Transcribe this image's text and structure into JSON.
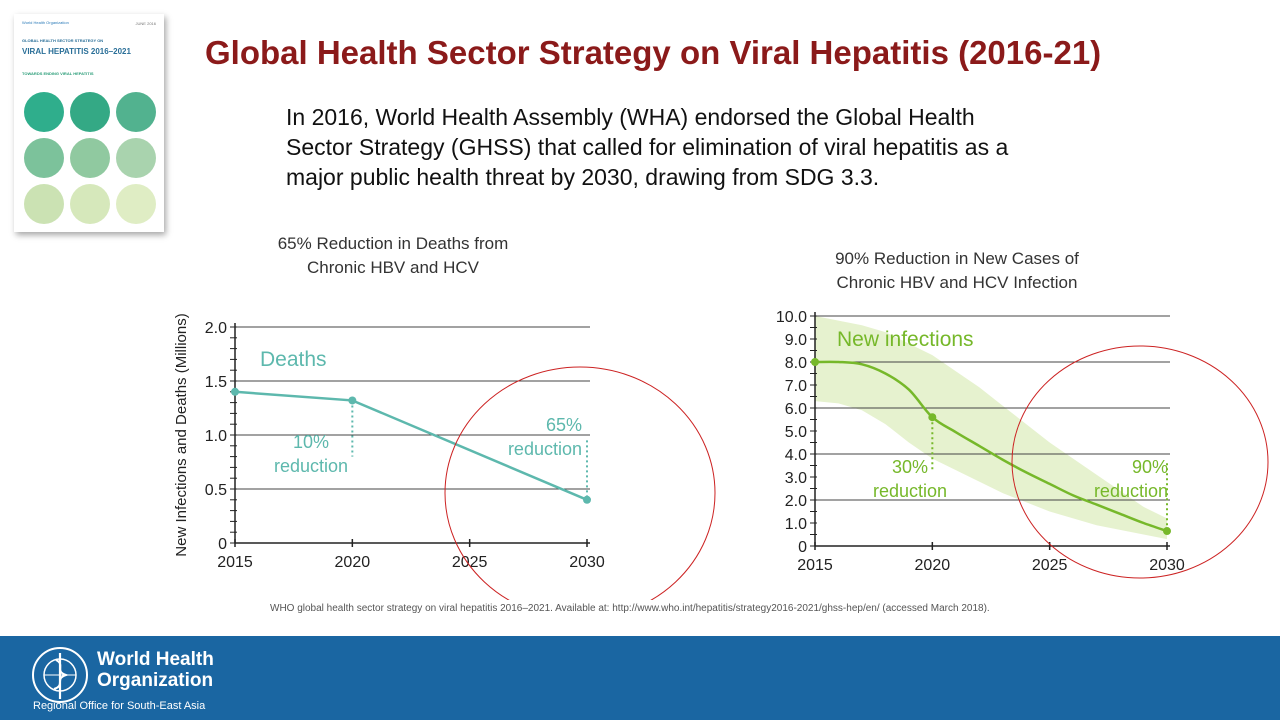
{
  "slide": {
    "title": "Global Health Sector Strategy on Viral Hepatitis (2016-21)",
    "intro_lines": [
      "In 2016, World Health Assembly (WHA) endorsed the Global Health",
      "Sector Strategy (GHSS) that called for elimination of viral hepatitis as a",
      "major public health threat by 2030, drawing from SDG 3.3."
    ],
    "citation": "WHO global health sector strategy on viral hepatitis 2016–2021. Available at: http://www.who.int/hepatitis/strategy2016-2021/ghss-hep/en/ (accessed March 2018)."
  },
  "cover": {
    "logo": "World Health Organization",
    "date": "JUNE 2016",
    "kicker": "GLOBAL HEALTH SECTOR STRATEGY ON",
    "title": "VIRAL HEPATITIS 2016–2021",
    "subtitle": "TOWARDS ENDING VIRAL HEPATITIS",
    "dot_colors": [
      "#2fae8c",
      "#34a985",
      "#52b28f",
      "#7cc29b",
      "#90c9a0",
      "#a9d3ae",
      "#cbe2b3",
      "#d6e8bb",
      "#dfedc4"
    ]
  },
  "footer": {
    "org_name": "World Health Organization",
    "region": "Regional Office for South-East Asia",
    "bg_color": "#1a66a2"
  },
  "chart_data": [
    {
      "type": "line",
      "title": "65% Reduction in Deaths from Chronic HBV and HCV",
      "title_lines": [
        "65% Reduction in Deaths from",
        "Chronic HBV and HCV"
      ],
      "ylabel": "New Infections and Deaths (Millions)",
      "xlabel": "",
      "x_ticks": [
        2015,
        2020,
        2025,
        2030
      ],
      "y_ticks": [
        0,
        0.5,
        1.0,
        1.5,
        2.0
      ],
      "y_tick_labels": [
        "0",
        "0.5",
        "1.0",
        "1.5",
        "2.0"
      ],
      "xlim": [
        2015,
        2030
      ],
      "ylim": [
        0,
        2.0
      ],
      "grid": true,
      "color": "#5db8ad",
      "series": [
        {
          "name": "Deaths",
          "x": [
            2015,
            2020,
            2030
          ],
          "y": [
            1.4,
            1.32,
            0.4
          ]
        }
      ],
      "annotations": [
        {
          "text_lines": [
            "10%",
            "reduction"
          ],
          "x": 2020,
          "y_from": 1.32,
          "y_to": 0.8
        },
        {
          "text_lines": [
            "65%",
            "reduction"
          ],
          "x": 2030,
          "y_from": 0.95,
          "y_to": 0.4
        }
      ]
    },
    {
      "type": "area",
      "title": "90% Reduction in New Cases of Chronic HBV and HCV Infection",
      "title_lines": [
        "90% Reduction in New Cases of",
        "Chronic HBV and HCV Infection"
      ],
      "ylabel": "",
      "xlabel": "",
      "x_ticks": [
        2015,
        2020,
        2025,
        2030
      ],
      "y_ticks": [
        0,
        1,
        2,
        3,
        4,
        5,
        6,
        7,
        8,
        9,
        10
      ],
      "y_tick_labels": [
        "0",
        "1.0",
        "2.0",
        "3.0",
        "4.0",
        "5.0",
        "6.0",
        "7.0",
        "8.0",
        "9.0",
        "10.0"
      ],
      "xlim": [
        2015,
        2030
      ],
      "ylim": [
        0,
        10
      ],
      "grid": true,
      "color": "#76b82a",
      "band_color": "#e6f2cf",
      "series": [
        {
          "name": "New infections",
          "x": [
            2015,
            2016,
            2017,
            2018,
            2019,
            2020,
            2021,
            2022,
            2023,
            2024,
            2025,
            2026,
            2027,
            2028,
            2029,
            2030
          ],
          "y": [
            8.0,
            8.0,
            7.9,
            7.5,
            6.8,
            5.6,
            4.95,
            4.35,
            3.75,
            3.2,
            2.7,
            2.2,
            1.8,
            1.4,
            1.0,
            0.65
          ],
          "band_upper": [
            10.0,
            9.8,
            9.6,
            9.3,
            8.8,
            8.3,
            7.6,
            6.9,
            6.1,
            5.3,
            4.5,
            3.8,
            3.1,
            2.4,
            1.7,
            1.2
          ],
          "band_lower": [
            6.3,
            6.2,
            5.9,
            5.3,
            4.5,
            3.8,
            3.3,
            2.8,
            2.3,
            1.9,
            1.5,
            1.2,
            0.9,
            0.7,
            0.5,
            0.3
          ]
        }
      ],
      "annotations": [
        {
          "text_lines": [
            "30%",
            "reduction"
          ],
          "x": 2020,
          "y_from": 5.6,
          "y_to": 3.3
        },
        {
          "text_lines": [
            "90%",
            "reduction"
          ],
          "x": 2030,
          "y_from": 3.6,
          "y_to": 0.65
        }
      ]
    }
  ]
}
